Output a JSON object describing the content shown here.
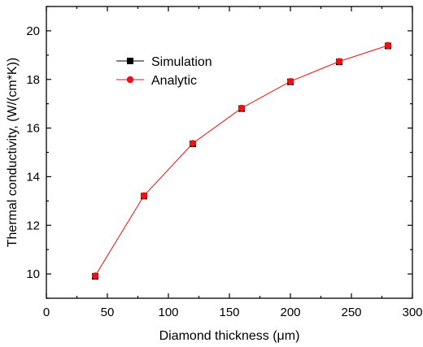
{
  "chart_data": {
    "type": "line",
    "xlabel": "Diamond thickness (μm)",
    "ylabel": "Thermal conductivity, (W/(cm*K))",
    "xlim": [
      0,
      300
    ],
    "ylim": [
      9,
      21
    ],
    "x_ticks": [
      0,
      50,
      100,
      150,
      200,
      250,
      300
    ],
    "y_ticks": [
      10,
      12,
      14,
      16,
      18,
      20
    ],
    "grid": false,
    "legend_position": "top-left",
    "series": [
      {
        "name": "Simulation",
        "color": "#000000",
        "marker": "square",
        "line": false,
        "x": [
          40,
          80,
          120,
          160,
          200,
          240,
          280
        ],
        "y": [
          9.9,
          13.2,
          15.35,
          16.8,
          17.9,
          18.72,
          19.38
        ]
      },
      {
        "name": "Analytic",
        "color": "#ee1111",
        "marker": "circle",
        "line": true,
        "x": [
          40,
          80,
          120,
          160,
          200,
          240,
          280
        ],
        "y": [
          9.92,
          13.22,
          15.37,
          16.82,
          17.92,
          18.74,
          19.4
        ]
      }
    ]
  }
}
